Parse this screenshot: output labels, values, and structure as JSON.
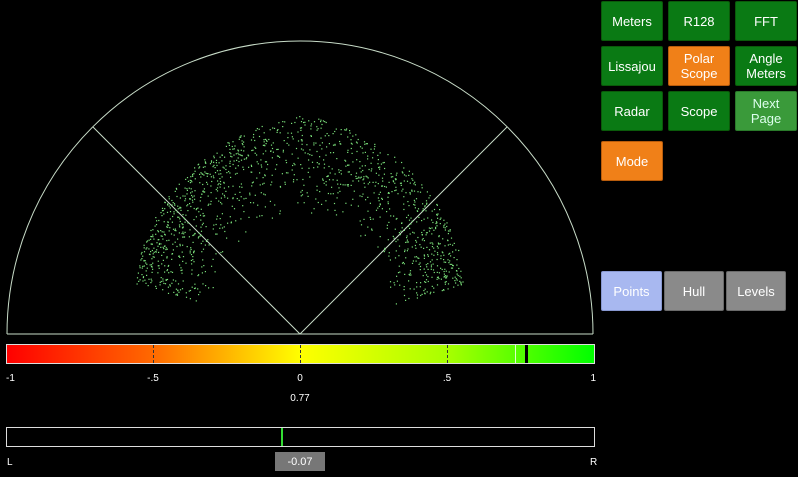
{
  "scope": {
    "mode": "Polar Scope",
    "display": "Points",
    "line_color": "#c8dcc8",
    "point_color": "#7be07b"
  },
  "buttons": {
    "meters": "Meters",
    "r128": "R128",
    "fft": "FFT",
    "lissajou": "Lissajou",
    "polar_scope_l1": "Polar",
    "polar_scope_l2": "Scope",
    "angle_meters_l1": "Angle",
    "angle_meters_l2": "Meters",
    "radar": "Radar",
    "scope": "Scope",
    "next_page_l1": "Next",
    "next_page_l2": "Page",
    "mode": "Mode",
    "points": "Points",
    "hull": "Hull",
    "levels": "Levels"
  },
  "correlation": {
    "ticks": [
      "-1",
      "-.5",
      "0",
      ".5",
      "1"
    ],
    "value": 0.77,
    "value_label": "0.77",
    "peak": 0.73
  },
  "balance": {
    "left_label": "L",
    "right_label": "R",
    "value": -0.07,
    "value_label": "-0.07"
  },
  "colors": {
    "button_green": "#0a7a14",
    "button_orange": "#f08018",
    "button_selected": "#a8b8f0",
    "button_grey": "#8a8a8a"
  }
}
